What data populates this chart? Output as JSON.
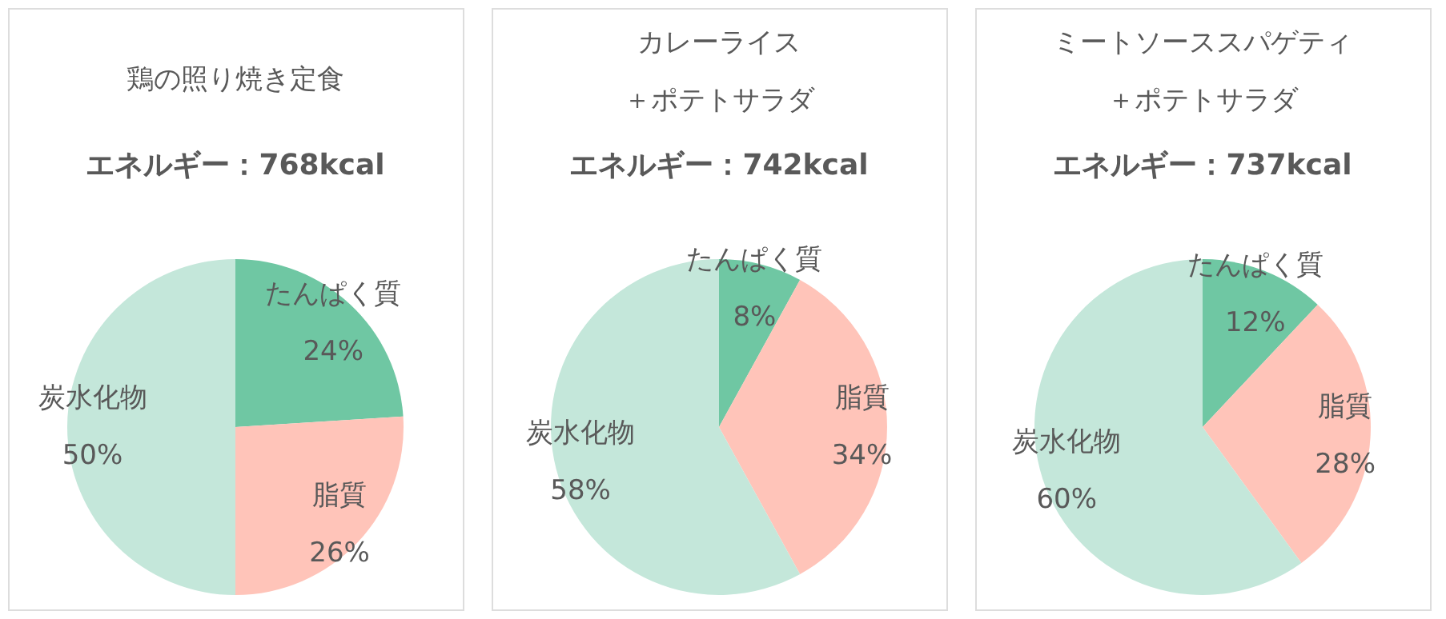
{
  "chart_data": [
    {
      "type": "pie",
      "title": "鶏の照り焼き定食",
      "subtitle": "エネルギー：768kcal",
      "categories": [
        "たんぱく質",
        "脂質",
        "炭水化物"
      ],
      "values": [
        24,
        26,
        50
      ],
      "colors": [
        "#6fc7a3",
        "#ffc4b9",
        "#c4e7da"
      ],
      "value_labels": [
        "24%",
        "26%",
        "50%"
      ]
    },
    {
      "type": "pie",
      "title": "カレーライス＋ポテトサラダ",
      "subtitle": "エネルギー：742kcal",
      "categories": [
        "たんぱく質",
        "脂質",
        "炭水化物"
      ],
      "values": [
        8,
        34,
        58
      ],
      "colors": [
        "#6fc7a3",
        "#ffc4b9",
        "#c4e7da"
      ],
      "value_labels": [
        "8%",
        "34%",
        "58%"
      ]
    },
    {
      "type": "pie",
      "title": "ミートソーススパゲティ＋ポテトサラダ",
      "subtitle": "エネルギー：737kcal",
      "categories": [
        "たんぱく質",
        "脂質",
        "炭水化物"
      ],
      "values": [
        12,
        28,
        60
      ],
      "colors": [
        "#6fc7a3",
        "#ffc4b9",
        "#c4e7da"
      ],
      "value_labels": [
        "12%",
        "28%",
        "60%"
      ]
    }
  ]
}
